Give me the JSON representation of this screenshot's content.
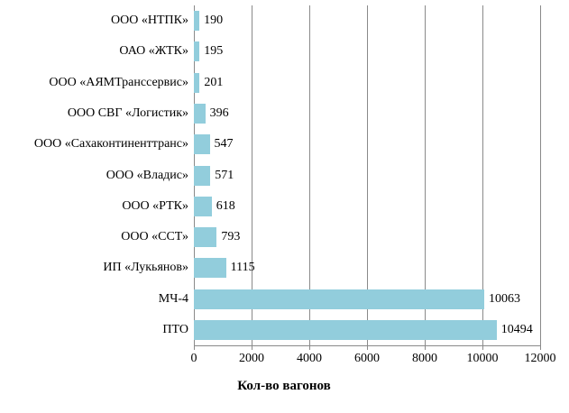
{
  "chart_data": {
    "type": "bar",
    "orientation": "horizontal",
    "title": "",
    "categories": [
      "ООО «НТПК»",
      "ОАО «ЖТК»",
      "ООО «АЯМТранссервис»",
      "ООО СВГ «Логистик»",
      "ООО «Сахаконтиненттранс»",
      "ООО «Владис»",
      "ООО «РТК»",
      "ООО «ССТ»",
      "ИП «Лукьянов»",
      "МЧ-4",
      "ПТО"
    ],
    "values": [
      190,
      195,
      201,
      396,
      547,
      571,
      618,
      793,
      1115,
      10063,
      10494
    ],
    "data_labels": [
      "190",
      "195",
      "201",
      "396",
      "547",
      "571",
      "618",
      "793",
      "1115",
      "10063",
      "10494"
    ],
    "xlabel": "Кол-во вагонов",
    "ylabel": "",
    "xlim": [
      0,
      12000
    ],
    "xticks": [
      0,
      2000,
      4000,
      6000,
      8000,
      10000,
      12000
    ],
    "xtick_labels": [
      "0",
      "2000",
      "4000",
      "6000",
      "8000",
      "10000",
      "12000"
    ],
    "grid": true,
    "legend": false,
    "colors": {
      "bar_fill": "#92CDDC",
      "grid_line": "#8a8a8a",
      "axis_line": "#8a8a8a",
      "text": "#000000",
      "background": "#ffffff"
    }
  }
}
